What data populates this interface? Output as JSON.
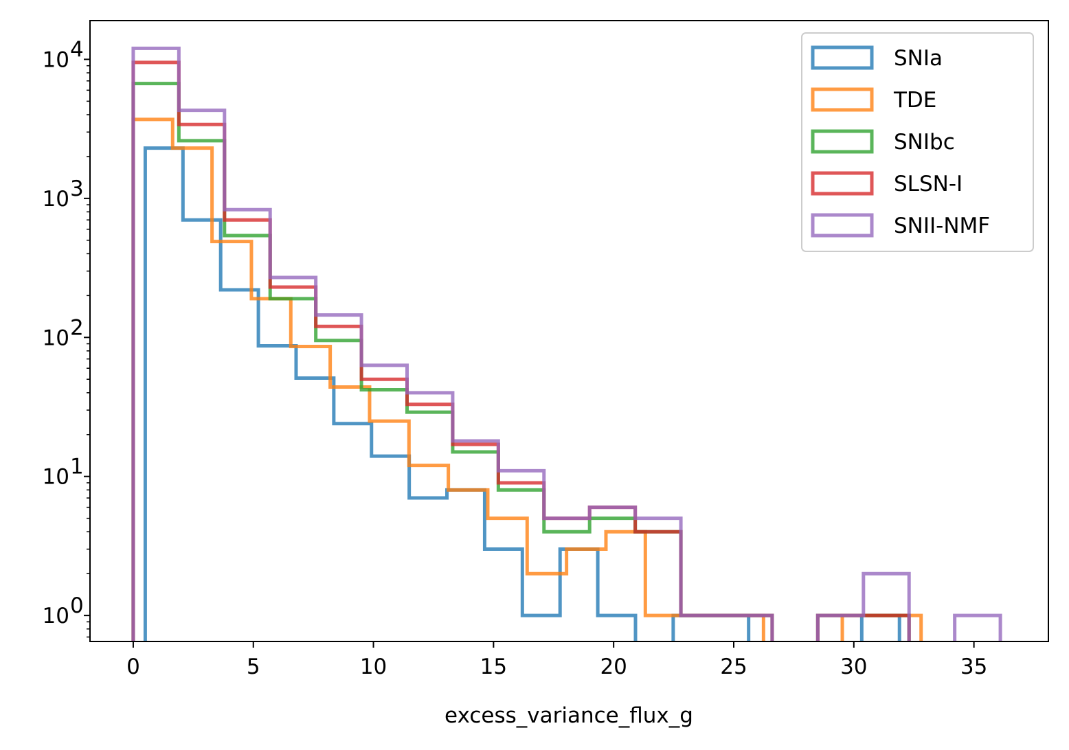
{
  "chart_data": {
    "type": "histogram",
    "title": "",
    "xlabel": "excess_variance_flux_g",
    "ylabel": "",
    "xlim": [
      -1.8,
      38.1
    ],
    "ylim": [
      0.65,
      19000
    ],
    "yscale": "log",
    "x_ticks": [
      0,
      5,
      10,
      15,
      20,
      25,
      30,
      35
    ],
    "x_tick_labels": [
      "0",
      "5",
      "10",
      "15",
      "20",
      "25",
      "30",
      "35"
    ],
    "y_ticks": [
      1,
      10,
      100,
      1000,
      10000
    ],
    "y_tick_bases": [
      "10",
      "10",
      "10",
      "10",
      "10"
    ],
    "y_tick_exps": [
      "0",
      "1",
      "2",
      "3",
      "4"
    ],
    "grid": false,
    "legend_position": "upper right",
    "series": [
      {
        "name": "SNIa",
        "color": "#1f77b4",
        "edges": [
          0.5,
          2.07,
          3.64,
          5.21,
          6.78,
          8.35,
          9.92,
          11.49,
          13.06,
          14.63,
          16.2,
          17.77,
          19.34,
          20.91,
          22.48,
          24.05,
          25.62,
          27.19,
          28.76,
          30.33,
          31.9
        ],
        "counts": [
          2300,
          700,
          220,
          87,
          51,
          24,
          14,
          7,
          8,
          3,
          1,
          3,
          1,
          0,
          1,
          1,
          0,
          0,
          0,
          1
        ]
      },
      {
        "name": "TDE",
        "color": "#ff7f0e",
        "edges": [
          0,
          1.64,
          3.28,
          4.92,
          6.56,
          8.2,
          9.84,
          11.48,
          13.12,
          14.76,
          16.4,
          18.04,
          19.68,
          21.32,
          22.96,
          24.6,
          26.24,
          27.88,
          29.52,
          31.16,
          32.8
        ],
        "counts": [
          3700,
          2300,
          490,
          190,
          86,
          44,
          25,
          12,
          8,
          5,
          2,
          3,
          4,
          1,
          1,
          1,
          0,
          0,
          1,
          1
        ]
      },
      {
        "name": "SNIbc",
        "color": "#2ca02c",
        "edges": [
          0,
          1.9,
          3.8,
          5.7,
          7.6,
          9.5,
          11.4,
          13.3,
          15.2,
          17.1,
          19.0,
          20.9,
          22.8,
          24.7,
          26.6,
          28.5,
          30.4,
          32.3
        ],
        "counts": [
          6700,
          2600,
          540,
          190,
          95,
          42,
          29,
          15,
          8,
          4,
          5,
          4,
          1,
          1,
          0,
          1,
          1
        ]
      },
      {
        "name": "SLSN-I",
        "color": "#d62728",
        "edges": [
          0,
          1.9,
          3.8,
          5.7,
          7.6,
          9.5,
          11.4,
          13.3,
          15.2,
          17.1,
          19.0,
          20.9,
          22.8,
          24.7,
          26.6,
          28.5,
          30.4,
          32.3
        ],
        "counts": [
          9500,
          3400,
          700,
          230,
          120,
          50,
          33,
          17,
          9,
          5,
          6,
          4,
          1,
          1,
          0,
          1,
          1
        ]
      },
      {
        "name": "SNII-NMF",
        "color": "#9467bd",
        "edges": [
          0,
          1.9,
          3.8,
          5.7,
          7.6,
          9.5,
          11.4,
          13.3,
          15.2,
          17.1,
          19.0,
          20.9,
          22.8,
          24.7,
          26.6,
          28.5,
          30.4,
          32.3,
          34.2,
          36.1
        ],
        "counts": [
          12000,
          4300,
          830,
          270,
          145,
          63,
          40,
          18,
          11,
          5,
          6,
          5,
          1,
          1,
          0,
          1,
          2,
          0,
          1
        ]
      }
    ]
  }
}
